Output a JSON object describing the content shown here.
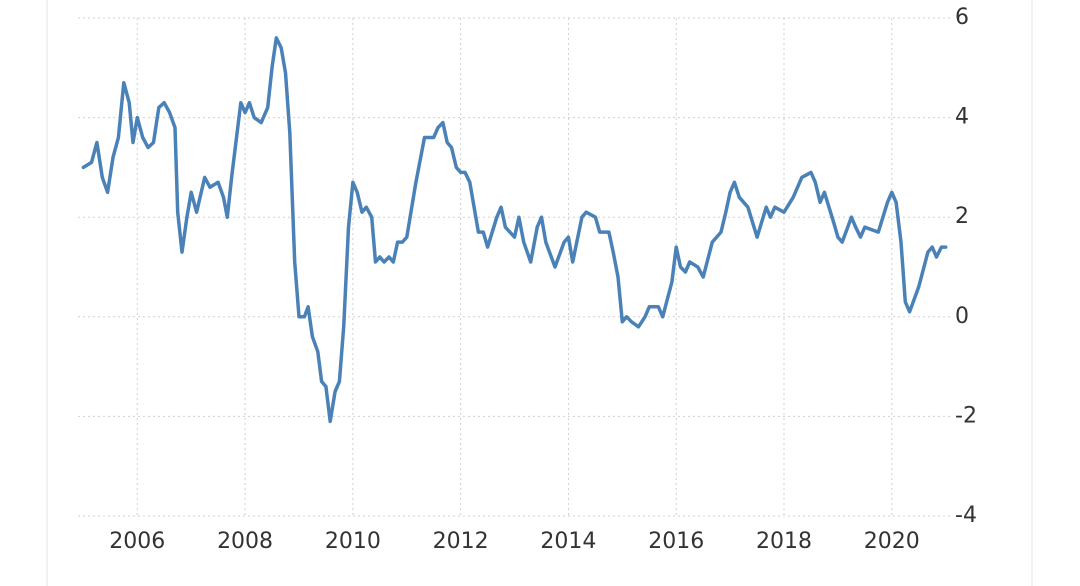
{
  "chart_data": {
    "type": "line",
    "x": [
      2005.0,
      2005.15,
      2005.25,
      2005.35,
      2005.45,
      2005.55,
      2005.65,
      2005.75,
      2005.85,
      2005.92,
      2006.0,
      2006.1,
      2006.2,
      2006.3,
      2006.4,
      2006.5,
      2006.6,
      2006.7,
      2006.75,
      2006.83,
      2006.92,
      2007.0,
      2007.1,
      2007.25,
      2007.35,
      2007.5,
      2007.6,
      2007.67,
      2007.75,
      2007.83,
      2007.92,
      2008.0,
      2008.08,
      2008.17,
      2008.3,
      2008.42,
      2008.5,
      2008.58,
      2008.67,
      2008.75,
      2008.83,
      2008.92,
      2009.0,
      2009.1,
      2009.17,
      2009.25,
      2009.35,
      2009.42,
      2009.5,
      2009.58,
      2009.67,
      2009.75,
      2009.83,
      2009.92,
      2010.0,
      2010.08,
      2010.17,
      2010.25,
      2010.35,
      2010.42,
      2010.5,
      2010.58,
      2010.67,
      2010.75,
      2010.83,
      2010.92,
      2011.0,
      2011.17,
      2011.33,
      2011.5,
      2011.58,
      2011.67,
      2011.75,
      2011.83,
      2011.92,
      2012.0,
      2012.08,
      2012.17,
      2012.33,
      2012.42,
      2012.5,
      2012.67,
      2012.75,
      2012.83,
      2013.0,
      2013.08,
      2013.17,
      2013.3,
      2013.42,
      2013.5,
      2013.58,
      2013.75,
      2013.92,
      2014.0,
      2014.08,
      2014.25,
      2014.33,
      2014.5,
      2014.58,
      2014.75,
      2014.83,
      2014.92,
      2015.0,
      2015.08,
      2015.17,
      2015.3,
      2015.42,
      2015.5,
      2015.67,
      2015.75,
      2015.92,
      2016.0,
      2016.08,
      2016.17,
      2016.25,
      2016.4,
      2016.5,
      2016.67,
      2016.83,
      2016.92,
      2017.0,
      2017.08,
      2017.17,
      2017.33,
      2017.5,
      2017.67,
      2017.75,
      2017.83,
      2018.0,
      2018.17,
      2018.33,
      2018.5,
      2018.58,
      2018.67,
      2018.75,
      2018.92,
      2019.0,
      2019.08,
      2019.25,
      2019.33,
      2019.42,
      2019.5,
      2019.75,
      2019.92,
      2020.0,
      2020.08,
      2020.17,
      2020.25,
      2020.33,
      2020.5,
      2020.67,
      2020.75,
      2020.83,
      2020.92,
      2021.0
    ],
    "series": [
      {
        "color": "#4a82b8",
        "values": [
          3.0,
          3.1,
          3.5,
          2.8,
          2.5,
          3.2,
          3.6,
          4.7,
          4.3,
          3.5,
          4.0,
          3.6,
          3.4,
          3.5,
          4.2,
          4.3,
          4.1,
          3.8,
          2.1,
          1.3,
          2.0,
          2.5,
          2.1,
          2.8,
          2.6,
          2.7,
          2.4,
          2.0,
          2.8,
          3.5,
          4.3,
          4.1,
          4.3,
          4.0,
          3.9,
          4.2,
          5.0,
          5.6,
          5.4,
          4.9,
          3.7,
          1.1,
          0.0,
          0.0,
          0.2,
          -0.4,
          -0.7,
          -1.3,
          -1.4,
          -2.1,
          -1.5,
          -1.3,
          -0.2,
          1.8,
          2.7,
          2.5,
          2.1,
          2.2,
          2.0,
          1.1,
          1.2,
          1.1,
          1.2,
          1.1,
          1.5,
          1.5,
          1.6,
          2.7,
          3.6,
          3.6,
          3.8,
          3.9,
          3.5,
          3.4,
          3.0,
          2.9,
          2.9,
          2.7,
          1.7,
          1.7,
          1.4,
          2.0,
          2.2,
          1.8,
          1.6,
          2.0,
          1.5,
          1.1,
          1.8,
          2.0,
          1.5,
          1.0,
          1.5,
          1.6,
          1.1,
          2.0,
          2.1,
          2.0,
          1.7,
          1.7,
          1.3,
          0.8,
          -0.1,
          0.0,
          -0.1,
          -0.2,
          0.0,
          0.2,
          0.2,
          0.0,
          0.7,
          1.4,
          1.0,
          0.9,
          1.1,
          1.0,
          0.8,
          1.5,
          1.7,
          2.1,
          2.5,
          2.7,
          2.4,
          2.2,
          1.6,
          2.2,
          2.0,
          2.2,
          2.1,
          2.4,
          2.8,
          2.9,
          2.7,
          2.3,
          2.5,
          1.9,
          1.6,
          1.5,
          2.0,
          1.8,
          1.6,
          1.8,
          1.7,
          2.3,
          2.5,
          2.3,
          1.5,
          0.3,
          0.1,
          0.6,
          1.3,
          1.4,
          1.2,
          1.4,
          1.4
        ]
      }
    ],
    "xlim": [
      2004.9,
      2021.08
    ],
    "xticks": [
      2006,
      2008,
      2010,
      2012,
      2014,
      2016,
      2018,
      2020
    ],
    "ylim": [
      -4,
      6
    ],
    "yticks": [
      -4,
      -2,
      0,
      2,
      4,
      6
    ],
    "grid": true
  }
}
